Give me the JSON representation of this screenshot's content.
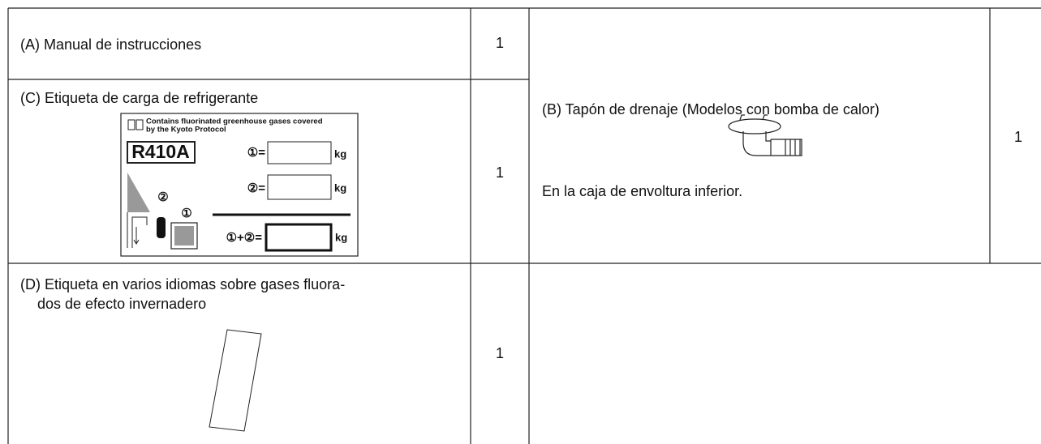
{
  "table": {
    "rows": [
      {
        "item": "(A) Manual de instrucciones",
        "qty": "1"
      },
      {
        "item": "(C) Etiqueta de carga de refrigerante",
        "qty": "1",
        "label": {
          "notice": [
            "Contains fluorinated greenhouse gases covered",
            "by the Kyoto Protocol"
          ],
          "refrigerant": "R410A",
          "charge1": "①=",
          "charge2": "②=",
          "total": "①+②=",
          "unit": "kg",
          "marker1": "①",
          "marker2": "②"
        }
      },
      {
        "item": "(B) Tapón de drenaje (Modelos con bomba de calor)",
        "note": "En la caja de envoltura inferior.",
        "qty": "1"
      },
      {
        "item": [
          "(D) Etiqueta en varios idiomas sobre gases fluora-",
          "dos de efecto invernadero"
        ],
        "qty": "1"
      }
    ]
  }
}
